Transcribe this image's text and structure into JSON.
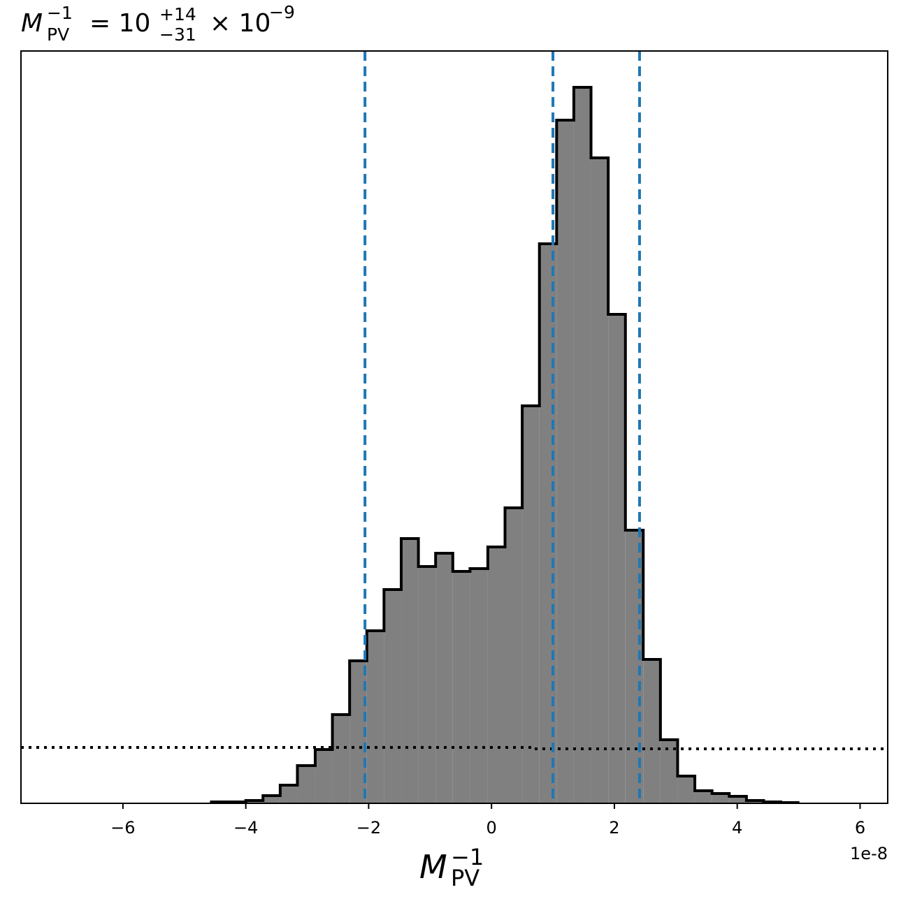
{
  "chart_data": {
    "type": "histogram",
    "title": {
      "symbol": "M",
      "sub": "PV",
      "sup": "−1",
      "equals": "= 10",
      "upper": "+14",
      "lower": "−31",
      "times": "× 10",
      "exp": "−9"
    },
    "x_label": {
      "symbol": "M",
      "sub": "PV",
      "sup": "−1"
    },
    "x_offset_label": "1e-8",
    "bins": [
      -4.56,
      -4.28,
      -4.0,
      -3.72,
      -3.44,
      -3.16,
      -2.87,
      -2.59,
      -2.31,
      -2.03,
      -1.75,
      -1.47,
      -1.19,
      -0.91,
      -0.63,
      -0.35,
      -0.06,
      0.22,
      0.5,
      0.78,
      1.06,
      1.34,
      1.62,
      1.9,
      2.18,
      2.47,
      2.75,
      3.03,
      3.31,
      3.59,
      3.87,
      4.15,
      4.43,
      4.71,
      4.99
    ],
    "values": [
      2,
      2,
      4,
      11,
      26,
      54,
      77,
      127,
      204,
      247,
      306,
      379,
      339,
      358,
      332,
      336,
      367,
      423,
      569,
      801,
      978,
      1025,
      924,
      700,
      391,
      206,
      91,
      39,
      18,
      14,
      10,
      4,
      2,
      1
    ],
    "color": "#808080",
    "edge_color": "#000000",
    "xlim": [
      -7.66,
      6.45
    ],
    "ylim": [
      0,
      1077
    ],
    "xticks": [
      {
        "value": -6,
        "label": "−6"
      },
      {
        "value": -4,
        "label": "−4"
      },
      {
        "value": -2,
        "label": "−2"
      },
      0,
      2,
      4,
      6
    ],
    "reference_lines": {
      "x": [
        -2.06,
        1.0,
        2.41
      ],
      "color": "#1f77b4"
    },
    "prior_line": {
      "x": [
        -7.66,
        0.65,
        0.65,
        6.45
      ],
      "values": [
        80,
        80,
        78,
        78
      ],
      "color": "#000000"
    }
  }
}
